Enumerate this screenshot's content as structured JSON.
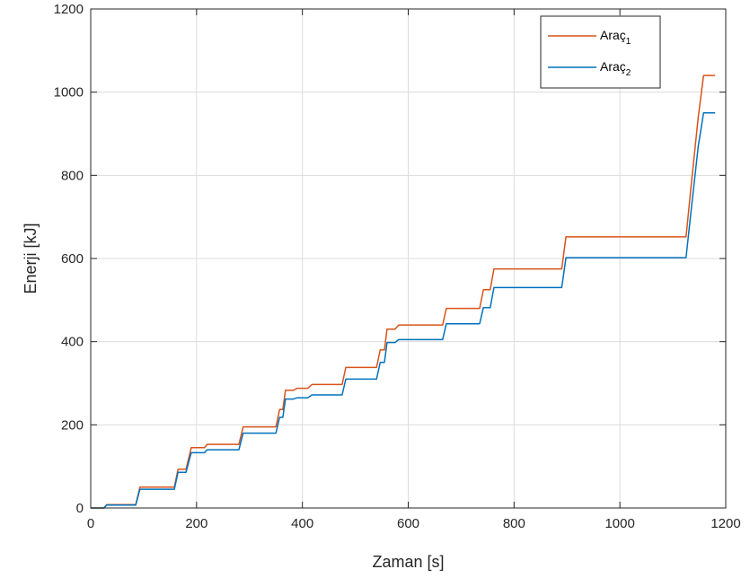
{
  "chart_data": {
    "type": "line",
    "title": "",
    "xlabel": "Zaman [s]",
    "ylabel": "Enerji [kJ]",
    "xlim": [
      0,
      1200
    ],
    "ylim": [
      0,
      1200
    ],
    "x_ticks": [
      "0",
      "200",
      "400",
      "600",
      "800",
      "1000",
      "1200"
    ],
    "y_ticks": [
      "0",
      "200",
      "400",
      "600",
      "800",
      "1000",
      "1200"
    ],
    "grid": true,
    "legend_position": "top-right",
    "series": [
      {
        "name": "Araç",
        "name_subscript": "1",
        "color": "#D95319",
        "x": [
          0,
          25,
          30,
          85,
          93,
          158,
          165,
          180,
          190,
          215,
          220,
          280,
          288,
          350,
          357,
          363,
          368,
          383,
          390,
          410,
          418,
          475,
          482,
          540,
          547,
          555,
          560,
          575,
          582,
          665,
          672,
          735,
          742,
          755,
          762,
          890,
          898,
          1125,
          1135,
          1148,
          1158,
          1162,
          1180
        ],
        "y": [
          0,
          0,
          8,
          8,
          50,
          50,
          93,
          93,
          145,
          145,
          153,
          153,
          195,
          195,
          237,
          237,
          283,
          283,
          288,
          288,
          297,
          297,
          338,
          338,
          380,
          380,
          430,
          430,
          440,
          440,
          480,
          480,
          525,
          525,
          575,
          575,
          652,
          652,
          780,
          940,
          1040,
          1040,
          1040
        ]
      },
      {
        "name": "Araç",
        "name_subscript": "2",
        "color": "#0072BD",
        "x": [
          0,
          25,
          30,
          85,
          93,
          158,
          165,
          180,
          190,
          215,
          220,
          280,
          288,
          350,
          357,
          363,
          368,
          383,
          390,
          410,
          418,
          475,
          482,
          540,
          547,
          555,
          560,
          575,
          582,
          665,
          672,
          735,
          742,
          755,
          762,
          890,
          898,
          1125,
          1135,
          1148,
          1158,
          1162,
          1180
        ],
        "y": [
          0,
          0,
          7,
          7,
          45,
          45,
          86,
          86,
          133,
          133,
          140,
          140,
          180,
          180,
          218,
          218,
          262,
          262,
          265,
          265,
          272,
          272,
          310,
          310,
          350,
          350,
          398,
          398,
          405,
          405,
          443,
          443,
          482,
          482,
          530,
          530,
          602,
          602,
          720,
          870,
          950,
          950,
          950
        ]
      }
    ]
  }
}
